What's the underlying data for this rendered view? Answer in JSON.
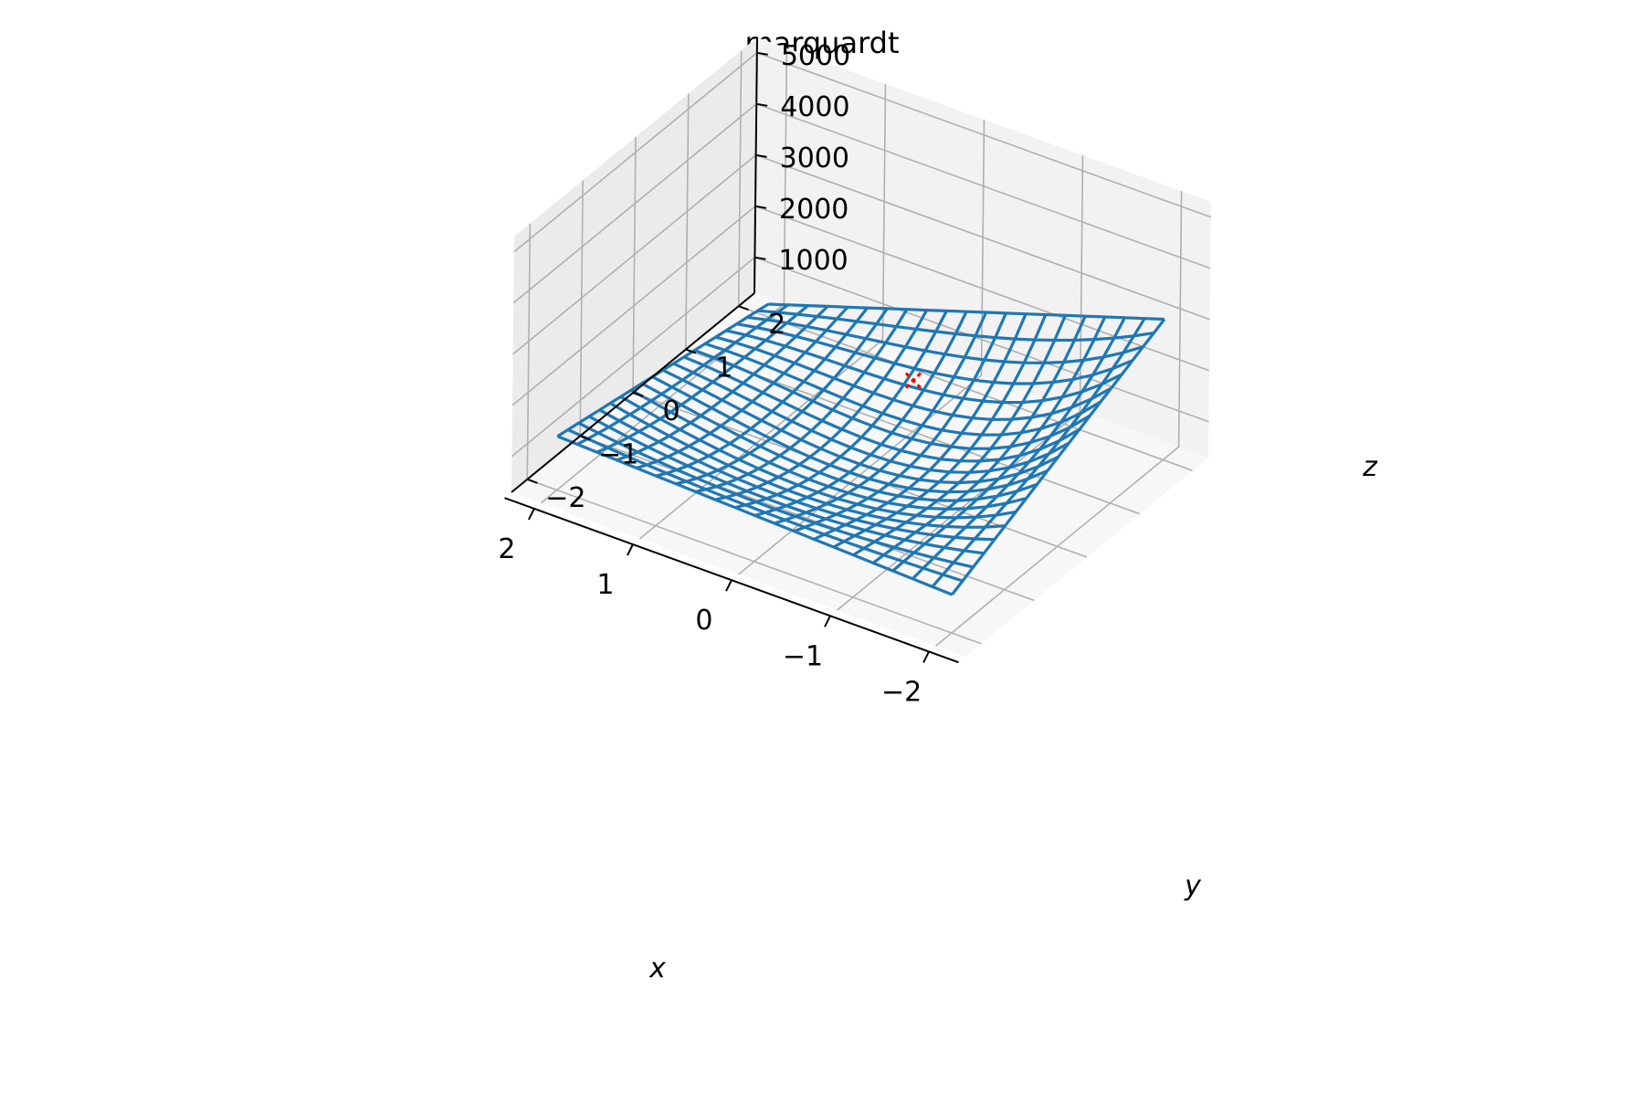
{
  "chart_data": {
    "type": "surface3d",
    "title": "marquardt",
    "xlabel": "x",
    "ylabel": "y",
    "zlabel": "z",
    "xlim": [
      -2.3,
      2.3
    ],
    "ylim": [
      -2.3,
      2.3
    ],
    "zlim": [
      300,
      5300
    ],
    "x_ticks": [
      -2,
      -1,
      0,
      1,
      2
    ],
    "y_ticks": [
      -2,
      -1,
      0,
      1,
      2
    ],
    "z_ticks": [
      1000,
      2000,
      3000,
      4000,
      5000
    ],
    "x_tick_labels": [
      "−2",
      "−1",
      "0",
      "1",
      "2"
    ],
    "y_tick_labels": [
      "−2",
      "−1",
      "0",
      "1",
      "2"
    ],
    "z_tick_labels": [
      "1000",
      "2000",
      "3000",
      "4000",
      "5000"
    ],
    "grid": true,
    "surface": {
      "style": "wireframe",
      "x_range": [
        -2,
        2
      ],
      "y_range": [
        -2,
        2
      ],
      "grid_size": 21,
      "z_corners": {
        "x-2_y-2": 1050,
        "x-2_y2": 3050,
        "x2_y-2": 1350,
        "x2_y2": 550
      },
      "z_min_approx": 400,
      "z_max_approx": 3100
    },
    "marker": {
      "x": 0,
      "y": 1,
      "z": 1300,
      "symbol": "x"
    },
    "colors": {
      "surface": "#1f77b4",
      "marker": "#ff0000",
      "pane_back": "#f2f2f2",
      "pane_side": "#ebebeb",
      "pane_floor": "#f7f7f7",
      "grid": "#b0b0b0"
    }
  }
}
